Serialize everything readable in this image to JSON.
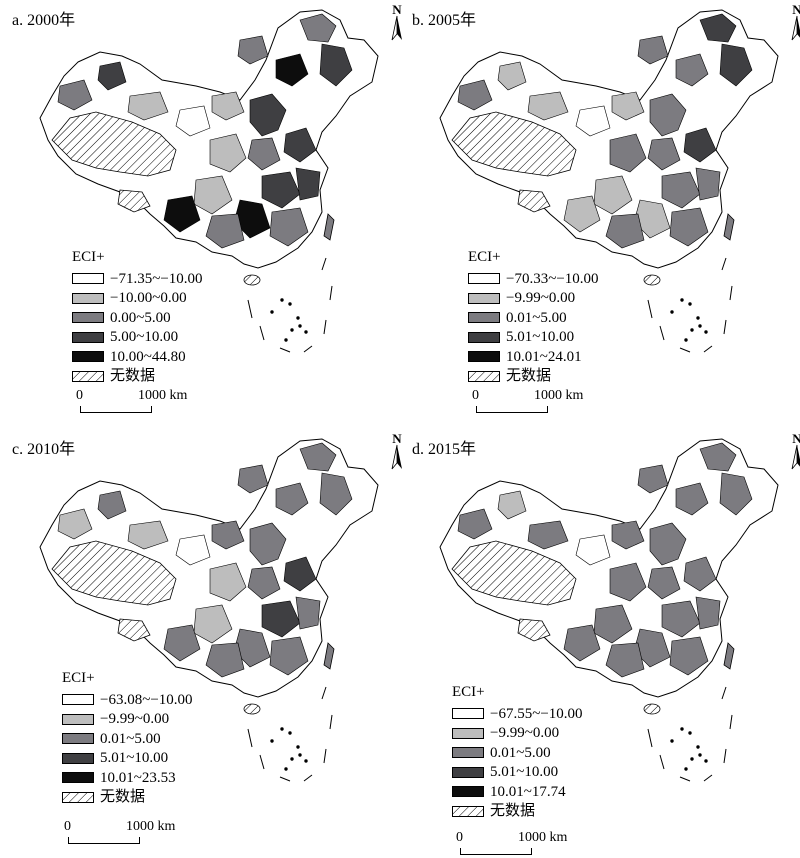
{
  "figure": {
    "legend_title": "ECI+",
    "no_data_label": "无数据",
    "north_label": "N",
    "scale": {
      "zero": "0",
      "end": "1000 km"
    },
    "class_colors": [
      "#ffffff",
      "#bdbdbd",
      "#7c7b80",
      "#3f3f42",
      "#0d0d0d"
    ]
  },
  "panels": [
    {
      "title": "a. 2000年",
      "legend": [
        "−71.35~−10.00",
        "−10.00~0.00",
        "0.00~5.00",
        "5.00~10.00",
        "10.00~44.80"
      ]
    },
    {
      "title": "b. 2005年",
      "legend": [
        "−70.33~−10.00",
        "−9.99~0.00",
        "0.01~5.00",
        "5.01~10.00",
        "10.01~24.01"
      ]
    },
    {
      "title": "c. 2010年",
      "legend": [
        "−63.08~−10.00",
        "−9.99~0.00",
        "0.01~5.00",
        "5.01~10.00",
        "10.01~23.53"
      ]
    },
    {
      "title": "d. 2015年",
      "legend": [
        "−67.55~−10.00",
        "−9.99~0.00",
        "0.01~5.00",
        "5.01~10.00",
        "10.01~17.74"
      ]
    }
  ]
}
